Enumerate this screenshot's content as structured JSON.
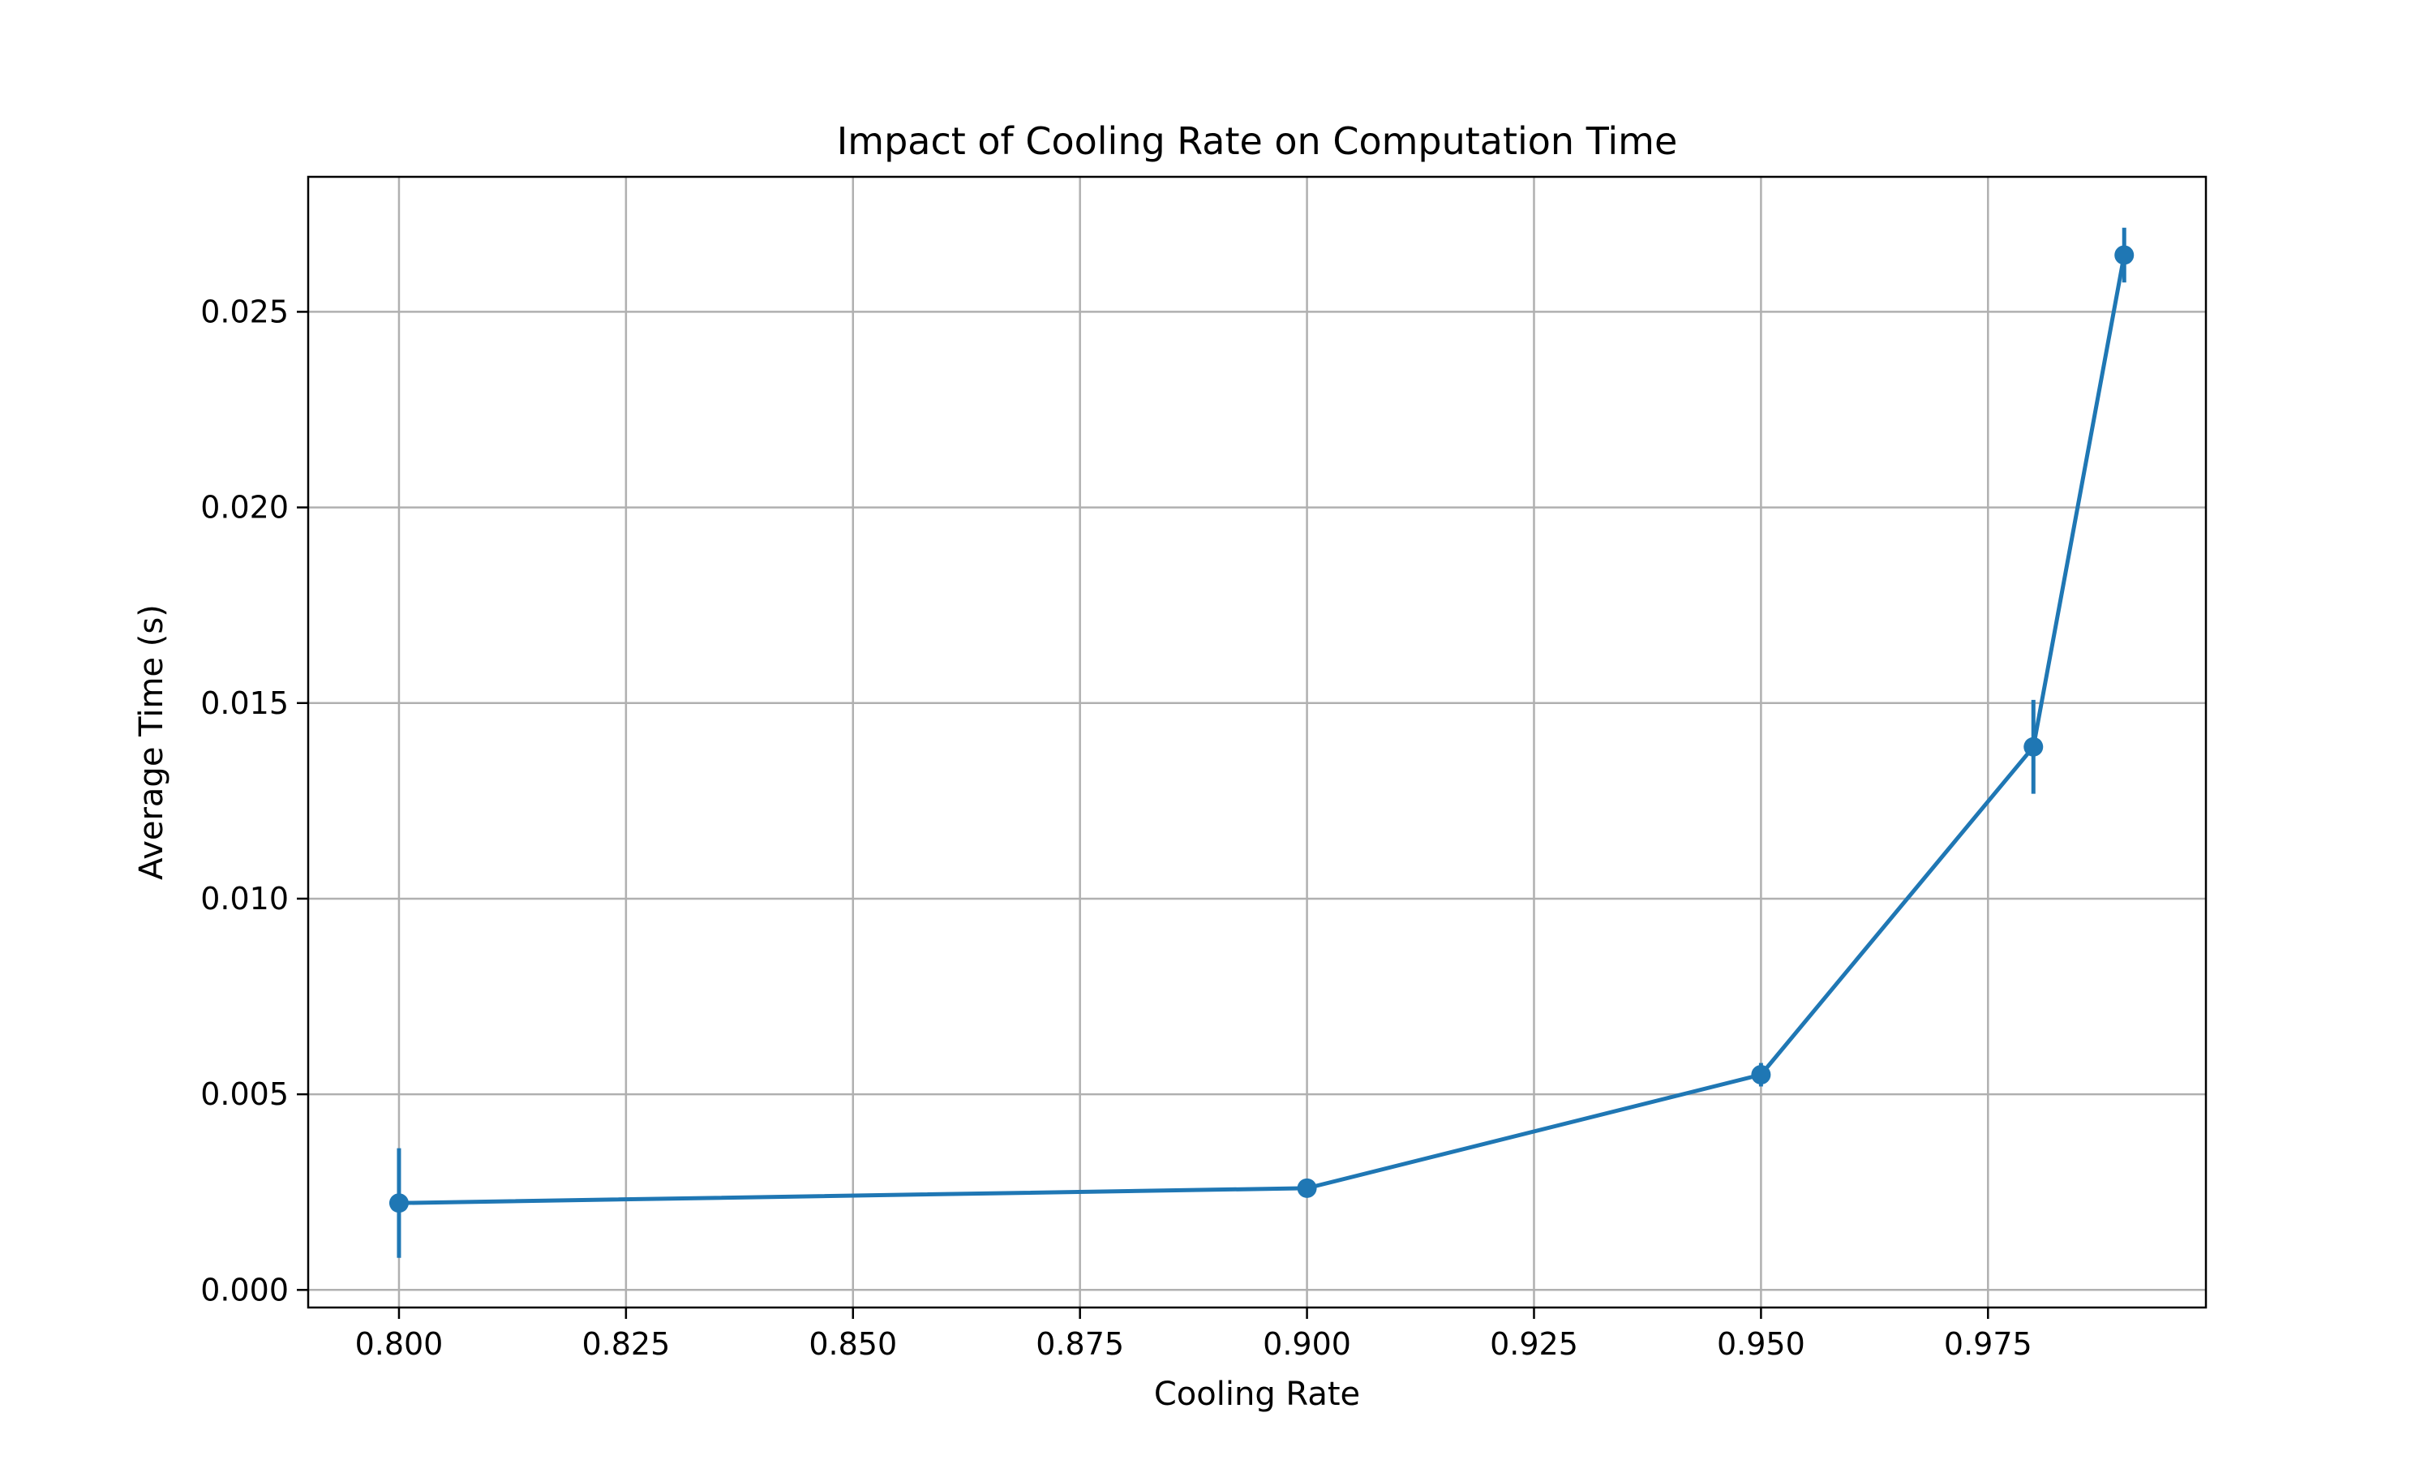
{
  "chart_data": {
    "type": "line",
    "title": "Impact of Cooling Rate on Computation Time",
    "xlabel": "Cooling Rate",
    "ylabel": "Average Time (s)",
    "xlim": [
      0.79,
      0.999
    ],
    "ylim": [
      -0.00045,
      0.02845
    ],
    "xticks": [
      0.8,
      0.825,
      0.85,
      0.875,
      0.9,
      0.925,
      0.95,
      0.975
    ],
    "xtick_labels": [
      "0.800",
      "0.825",
      "0.850",
      "0.875",
      "0.900",
      "0.925",
      "0.950",
      "0.975"
    ],
    "yticks": [
      0.0,
      0.005,
      0.01,
      0.015,
      0.02,
      0.025
    ],
    "ytick_labels": [
      "0.000",
      "0.005",
      "0.010",
      "0.015",
      "0.020",
      "0.025"
    ],
    "grid": true,
    "series": [
      {
        "color": "#1f77b4",
        "x": [
          0.8,
          0.9,
          0.95,
          0.98,
          0.99
        ],
        "y": [
          0.00222,
          0.0026,
          0.0055,
          0.01388,
          0.02645
        ],
        "yerr": [
          0.0014,
          0.0001,
          0.0003,
          0.0012,
          0.0007
        ]
      }
    ]
  }
}
